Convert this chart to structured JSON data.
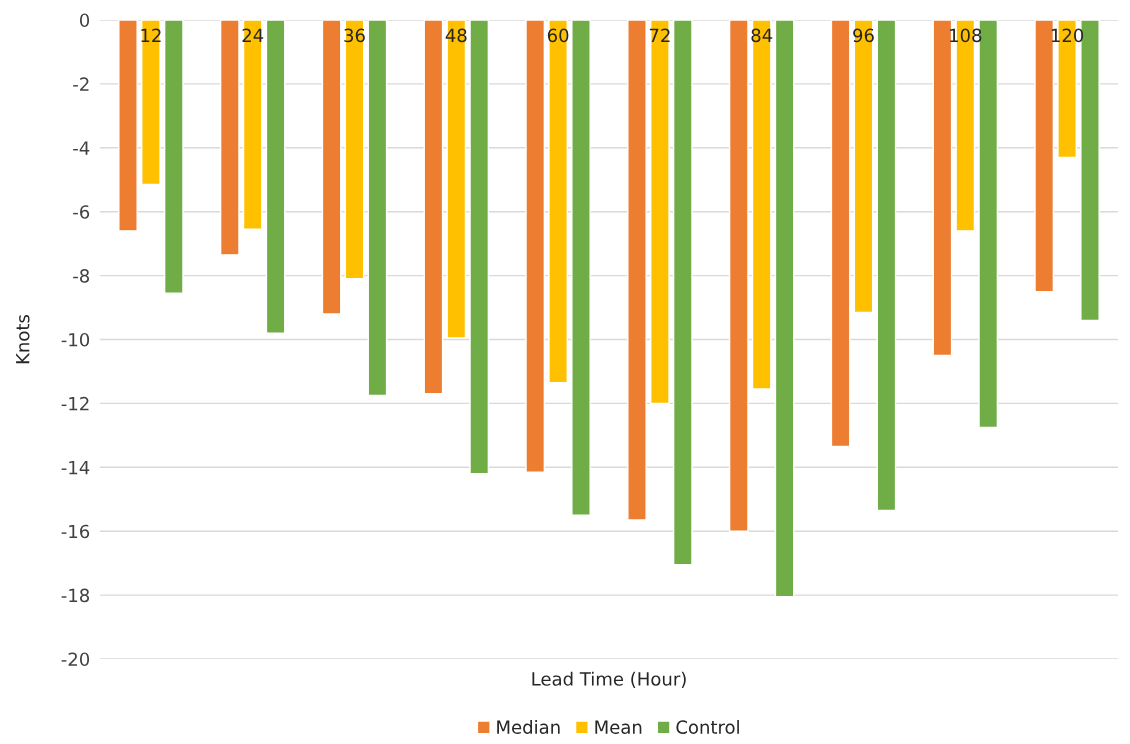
{
  "chart_data": {
    "type": "bar",
    "xlabel": "Lead Time (Hour)",
    "ylabel": "Knots",
    "categories": [
      "12",
      "24",
      "36",
      "48",
      "60",
      "72",
      "84",
      "96",
      "108",
      "120"
    ],
    "series": [
      {
        "name": "Median",
        "color": "#ed7d31",
        "values": [
          -6.6,
          -7.35,
          -9.2,
          -11.7,
          -14.15,
          -15.65,
          -16.0,
          -13.35,
          -10.5,
          -8.5
        ]
      },
      {
        "name": "Mean",
        "color": "#ffc000",
        "values": [
          -5.15,
          -6.55,
          -8.1,
          -9.95,
          -11.35,
          -12.0,
          -11.55,
          -9.15,
          -6.6,
          -4.3
        ]
      },
      {
        "name": "Control",
        "color": "#70ad47",
        "values": [
          -8.55,
          -9.8,
          -11.75,
          -14.2,
          -15.5,
          -17.05,
          -18.05,
          -15.35,
          -12.75,
          -9.4
        ]
      }
    ],
    "ylim": [
      -20,
      0
    ],
    "yticks": [
      -20,
      -18,
      -16,
      -14,
      -12,
      -10,
      -8,
      -6,
      -4,
      -2,
      0
    ],
    "grid": "y",
    "legend": "bottom"
  }
}
